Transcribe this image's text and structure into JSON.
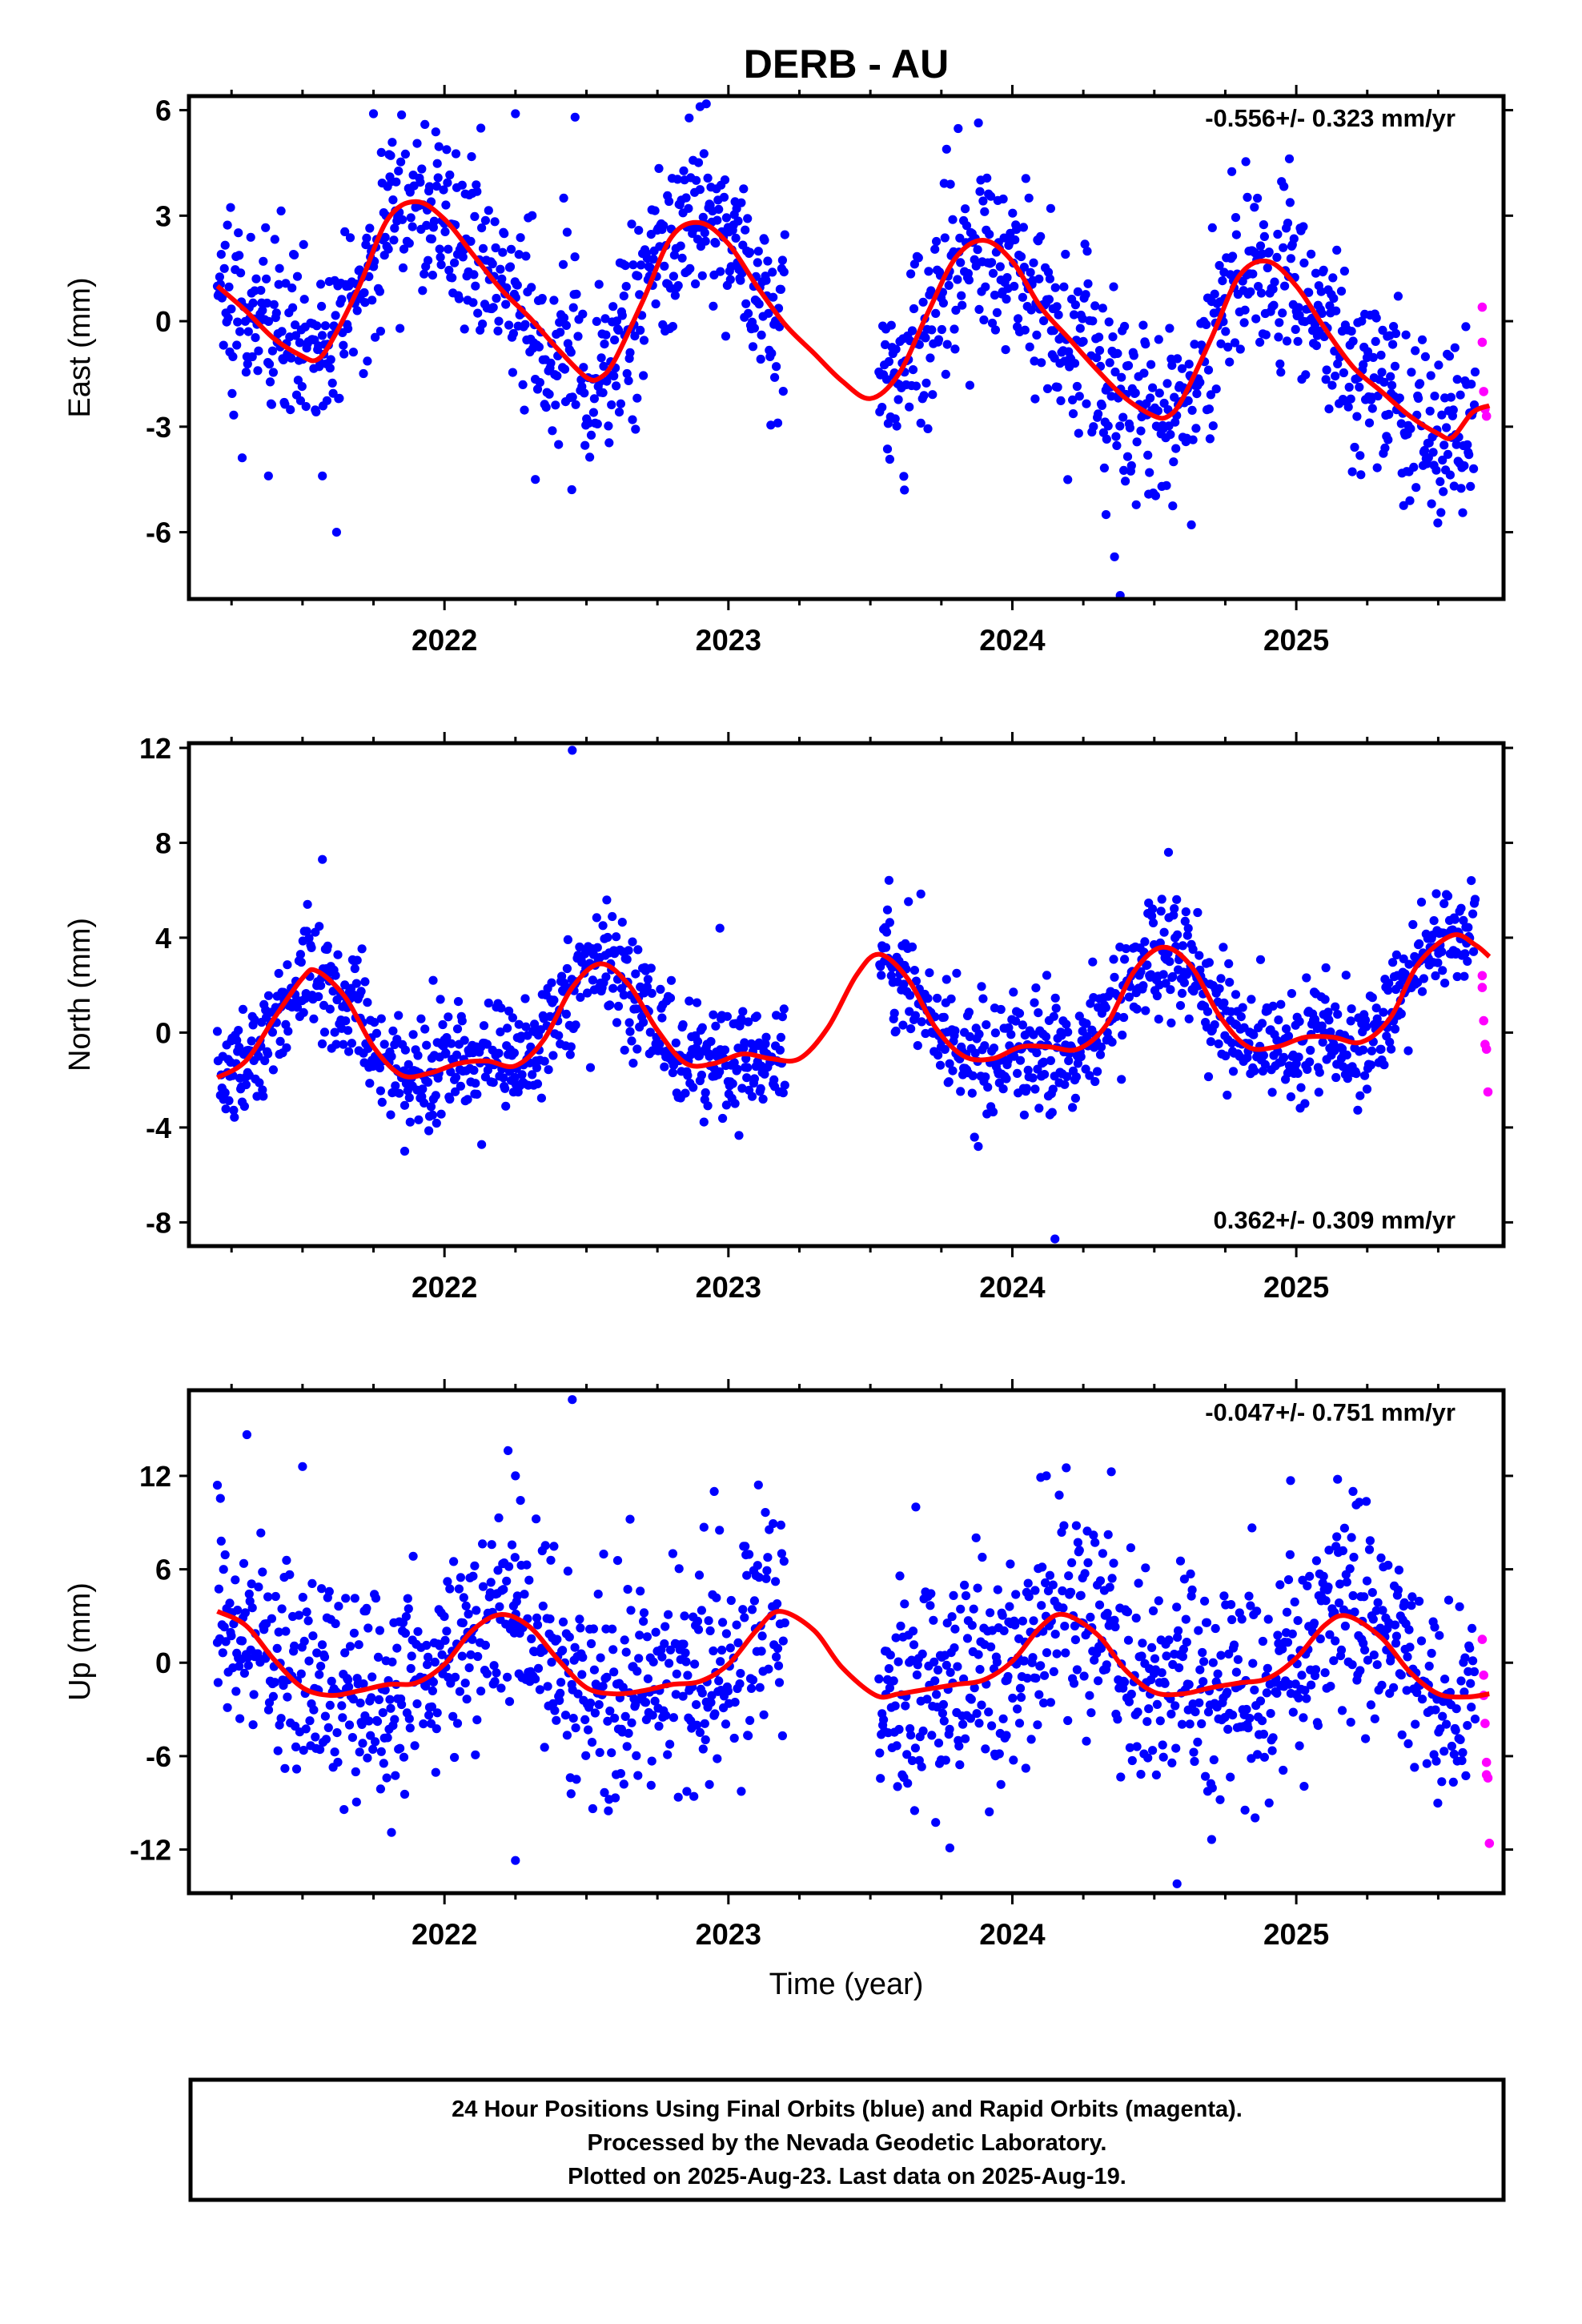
{
  "title": "DERB - AU",
  "colors": {
    "final": "#0000ff",
    "rapid": "#ff00ff",
    "model": "#ff0000",
    "frame": "#000000"
  },
  "xlabel": "Time (year)",
  "footer": {
    "lines": [
      "24 Hour Positions Using Final Orbits (blue) and Rapid Orbits (magenta).",
      "Processed by the Nevada Geodetic Laboratory.",
      "Plotted on 2025-Aug-23. Last data on 2025-Aug-19."
    ]
  },
  "chart_data": [
    {
      "type": "scatter",
      "component": "East",
      "ylabel": "East (mm)",
      "rate_label": "-0.556+/- 0.323 mm/yr",
      "xlim": [
        2021.1,
        2025.73
      ],
      "ylim": [
        -7.9,
        6.4
      ],
      "yticks": [
        -6,
        -3,
        0,
        3,
        6
      ],
      "yticklabels": [
        "-6",
        "-3",
        "0",
        "3",
        "6"
      ],
      "xticks": [
        2022,
        2023,
        2024,
        2025
      ],
      "xticklabels": [
        "2022",
        "2023",
        "2024",
        "2025"
      ],
      "model": {
        "name": "seasonal fit",
        "points": [
          [
            2021.2,
            1.0
          ],
          [
            2021.3,
            0.3
          ],
          [
            2021.4,
            -0.5
          ],
          [
            2021.5,
            -1.0
          ],
          [
            2021.55,
            -1.1
          ],
          [
            2021.6,
            -0.6
          ],
          [
            2021.7,
            1.0
          ],
          [
            2021.8,
            2.9
          ],
          [
            2021.9,
            3.4
          ],
          [
            2022.0,
            2.9
          ],
          [
            2022.1,
            1.9
          ],
          [
            2022.2,
            0.9
          ],
          [
            2022.3,
            0.1
          ],
          [
            2022.4,
            -0.8
          ],
          [
            2022.5,
            -1.6
          ],
          [
            2022.55,
            -1.6
          ],
          [
            2022.6,
            -1.1
          ],
          [
            2022.7,
            0.6
          ],
          [
            2022.8,
            2.4
          ],
          [
            2022.9,
            2.8
          ],
          [
            2023.0,
            2.2
          ],
          [
            2023.1,
            1.0
          ],
          [
            2023.2,
            -0.1
          ],
          [
            2023.3,
            -0.9
          ],
          [
            2023.4,
            -1.7
          ],
          [
            2023.5,
            -2.2
          ],
          [
            2023.6,
            -1.5
          ],
          [
            2023.7,
            0.2
          ],
          [
            2023.8,
            1.8
          ],
          [
            2023.9,
            2.3
          ],
          [
            2024.0,
            1.7
          ],
          [
            2024.1,
            0.4
          ],
          [
            2024.2,
            -0.5
          ],
          [
            2024.3,
            -1.4
          ],
          [
            2024.4,
            -2.2
          ],
          [
            2024.5,
            -2.7
          ],
          [
            2024.55,
            -2.7
          ],
          [
            2024.6,
            -2.2
          ],
          [
            2024.7,
            -0.5
          ],
          [
            2024.8,
            1.3
          ],
          [
            2024.9,
            1.7
          ],
          [
            2025.0,
            1.0
          ],
          [
            2025.1,
            -0.2
          ],
          [
            2025.2,
            -1.3
          ],
          [
            2025.3,
            -2.0
          ],
          [
            2025.4,
            -2.7
          ],
          [
            2025.5,
            -3.2
          ],
          [
            2025.55,
            -3.3
          ],
          [
            2025.62,
            -2.6
          ],
          [
            2025.68,
            -2.4
          ]
        ]
      },
      "data_spans": [
        {
          "start": 2021.2,
          "end": 2023.2,
          "spread": 1.3
        },
        {
          "start": 2023.53,
          "end": 2025.63,
          "spread": 1.3
        }
      ],
      "outliers": [
        [
          2021.38,
          -4.4
        ],
        [
          2021.62,
          -6.0
        ],
        [
          2021.75,
          5.9
        ],
        [
          2022.25,
          5.9
        ],
        [
          2022.46,
          5.8
        ],
        [
          2022.9,
          6.1
        ],
        [
          2023.62,
          -4.8
        ],
        [
          2024.36,
          -6.7
        ],
        [
          2024.38,
          -7.8
        ],
        [
          2024.33,
          -5.5
        ],
        [
          2022.32,
          -4.5
        ],
        [
          2021.57,
          -4.4
        ],
        [
          2022.42,
          3.5
        ]
      ],
      "rapid_points": [
        [
          2025.655,
          0.4
        ],
        [
          2025.655,
          -0.6
        ],
        [
          2025.66,
          -2.0
        ],
        [
          2025.665,
          -2.5
        ],
        [
          2025.67,
          -2.7
        ]
      ]
    },
    {
      "type": "scatter",
      "component": "North",
      "ylabel": "North (mm)",
      "rate_label": "0.362+/- 0.309 mm/yr",
      "xlim": [
        2021.1,
        2025.73
      ],
      "ylim": [
        -9.0,
        12.2
      ],
      "yticks": [
        -8,
        -4,
        0,
        4,
        8,
        12
      ],
      "yticklabels": [
        "-8",
        "-4",
        "0",
        "4",
        "8",
        "12"
      ],
      "xticks": [
        2022,
        2023,
        2024,
        2025
      ],
      "xticklabels": [
        "2022",
        "2023",
        "2024",
        "2025"
      ],
      "model": {
        "name": "seasonal fit",
        "points": [
          [
            2021.2,
            -1.9
          ],
          [
            2021.3,
            -1.2
          ],
          [
            2021.4,
            0.6
          ],
          [
            2021.5,
            2.3
          ],
          [
            2021.55,
            2.6
          ],
          [
            2021.65,
            1.5
          ],
          [
            2021.75,
            -0.6
          ],
          [
            2021.85,
            -1.8
          ],
          [
            2021.95,
            -1.7
          ],
          [
            2022.05,
            -1.3
          ],
          [
            2022.15,
            -1.2
          ],
          [
            2022.25,
            -1.4
          ],
          [
            2022.35,
            -0.3
          ],
          [
            2022.45,
            1.9
          ],
          [
            2022.55,
            2.9
          ],
          [
            2022.65,
            2.0
          ],
          [
            2022.75,
            0.1
          ],
          [
            2022.85,
            -1.3
          ],
          [
            2022.95,
            -1.3
          ],
          [
            2023.05,
            -0.9
          ],
          [
            2023.15,
            -1.1
          ],
          [
            2023.25,
            -1.1
          ],
          [
            2023.35,
            0.2
          ],
          [
            2023.45,
            2.4
          ],
          [
            2023.53,
            3.3
          ],
          [
            2023.63,
            2.3
          ],
          [
            2023.73,
            0.2
          ],
          [
            2023.83,
            -1.0
          ],
          [
            2023.93,
            -1.1
          ],
          [
            2024.03,
            -0.6
          ],
          [
            2024.13,
            -0.6
          ],
          [
            2024.23,
            -0.7
          ],
          [
            2024.33,
            0.3
          ],
          [
            2024.43,
            2.6
          ],
          [
            2024.53,
            3.6
          ],
          [
            2024.63,
            2.8
          ],
          [
            2024.73,
            0.7
          ],
          [
            2024.83,
            -0.6
          ],
          [
            2024.93,
            -0.6
          ],
          [
            2025.03,
            -0.2
          ],
          [
            2025.13,
            -0.2
          ],
          [
            2025.23,
            -0.4
          ],
          [
            2025.33,
            0.6
          ],
          [
            2025.43,
            2.9
          ],
          [
            2025.55,
            4.1
          ],
          [
            2025.63,
            3.7
          ],
          [
            2025.68,
            3.2
          ]
        ]
      },
      "data_spans": [
        {
          "start": 2021.2,
          "end": 2023.2,
          "spread": 1.2
        },
        {
          "start": 2023.53,
          "end": 2025.63,
          "spread": 1.2
        }
      ],
      "outliers": [
        [
          2021.57,
          7.3
        ],
        [
          2022.45,
          11.9
        ],
        [
          2024.15,
          -8.7
        ],
        [
          2023.88,
          -4.8
        ],
        [
          2021.86,
          -5.0
        ],
        [
          2024.55,
          7.6
        ],
        [
          2022.97,
          4.4
        ],
        [
          2021.96,
          2.2
        ]
      ],
      "rapid_points": [
        [
          2025.655,
          2.4
        ],
        [
          2025.655,
          1.9
        ],
        [
          2025.66,
          0.5
        ],
        [
          2025.665,
          -0.5
        ],
        [
          2025.67,
          -0.7
        ],
        [
          2025.675,
          -2.5
        ]
      ]
    },
    {
      "type": "scatter",
      "component": "Up",
      "ylabel": "Up (mm)",
      "rate_label": "-0.047+/- 0.751 mm/yr",
      "xlim": [
        2021.1,
        2025.73
      ],
      "ylim": [
        -14.8,
        17.5
      ],
      "yticks": [
        -12,
        -6,
        0,
        6,
        12
      ],
      "yticklabels": [
        "-12",
        "-6",
        "0",
        "6",
        "12"
      ],
      "xticks": [
        2022,
        2023,
        2024,
        2025
      ],
      "xticklabels": [
        "2022",
        "2023",
        "2024",
        "2025"
      ],
      "model": {
        "name": "seasonal fit",
        "points": [
          [
            2021.2,
            3.3
          ],
          [
            2021.3,
            2.4
          ],
          [
            2021.4,
            0.2
          ],
          [
            2021.5,
            -1.6
          ],
          [
            2021.6,
            -2.1
          ],
          [
            2021.7,
            -1.8
          ],
          [
            2021.8,
            -1.4
          ],
          [
            2021.9,
            -1.3
          ],
          [
            2022.0,
            -0.1
          ],
          [
            2022.1,
            2.1
          ],
          [
            2022.2,
            3.1
          ],
          [
            2022.3,
            2.3
          ],
          [
            2022.4,
            0.2
          ],
          [
            2022.5,
            -1.6
          ],
          [
            2022.6,
            -2.0
          ],
          [
            2022.7,
            -1.8
          ],
          [
            2022.8,
            -1.4
          ],
          [
            2022.9,
            -1.2
          ],
          [
            2023.0,
            -0.1
          ],
          [
            2023.1,
            2.1
          ],
          [
            2023.18,
            3.3
          ],
          [
            2023.3,
            2.1
          ],
          [
            2023.4,
            -0.3
          ],
          [
            2023.52,
            -2.1
          ],
          [
            2023.6,
            -2.0
          ],
          [
            2023.7,
            -1.7
          ],
          [
            2023.8,
            -1.4
          ],
          [
            2023.9,
            -1.1
          ],
          [
            2024.0,
            0.1
          ],
          [
            2024.1,
            2.3
          ],
          [
            2024.18,
            3.1
          ],
          [
            2024.3,
            1.8
          ],
          [
            2024.4,
            -0.5
          ],
          [
            2024.5,
            -1.9
          ],
          [
            2024.6,
            -2.0
          ],
          [
            2024.7,
            -1.6
          ],
          [
            2024.8,
            -1.3
          ],
          [
            2024.9,
            -1.0
          ],
          [
            2025.0,
            0.3
          ],
          [
            2025.1,
            2.4
          ],
          [
            2025.18,
            3.0
          ],
          [
            2025.3,
            1.6
          ],
          [
            2025.4,
            -0.6
          ],
          [
            2025.5,
            -2.0
          ],
          [
            2025.6,
            -2.2
          ],
          [
            2025.68,
            -2.0
          ]
        ]
      },
      "data_spans": [
        {
          "start": 2021.2,
          "end": 2023.2,
          "spread": 3.5
        },
        {
          "start": 2023.53,
          "end": 2025.63,
          "spread": 3.5
        }
      ],
      "outliers": [
        [
          2021.5,
          12.6
        ],
        [
          2022.25,
          12.0
        ],
        [
          2022.45,
          16.9
        ],
        [
          2022.25,
          -12.7
        ],
        [
          2023.78,
          -11.9
        ],
        [
          2024.58,
          -14.2
        ],
        [
          2024.1,
          11.9
        ],
        [
          2024.12,
          12.0
        ],
        [
          2024.98,
          11.7
        ],
        [
          2025.2,
          11.0
        ],
        [
          2021.2,
          11.4
        ],
        [
          2022.95,
          11.0
        ],
        [
          2023.66,
          10.0
        ]
      ],
      "rapid_points": [
        [
          2025.655,
          1.5
        ],
        [
          2025.66,
          -0.8
        ],
        [
          2025.66,
          -2.1
        ],
        [
          2025.665,
          -3.9
        ],
        [
          2025.67,
          -6.4
        ],
        [
          2025.67,
          -7.2
        ],
        [
          2025.675,
          -7.4
        ],
        [
          2025.68,
          -11.6
        ]
      ]
    }
  ]
}
